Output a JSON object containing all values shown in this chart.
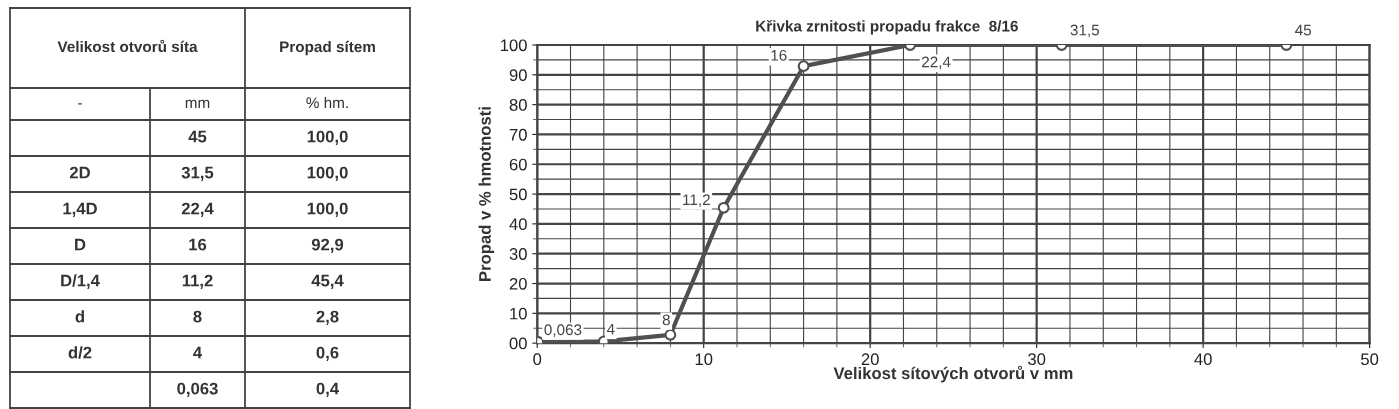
{
  "chart_data": {
    "type": "line",
    "title": "Křivka zrnitosti propadu frakce  8/16",
    "xlabel": "Velikost sítových otvorů v mm",
    "ylabel": "Propad v % hmotnosti",
    "x": [
      0.063,
      4,
      8,
      11.2,
      16,
      22.4,
      31.5,
      45
    ],
    "series": [
      {
        "color": "#505050",
        "values": [
          0.4,
          0.6,
          2.8,
          45.4,
          92.9,
          100.0,
          100.0,
          100.0
        ]
      }
    ],
    "xlim": [
      0,
      50
    ],
    "ylim": [
      0,
      100
    ],
    "xticks": [
      0,
      10,
      20,
      30,
      40,
      50
    ],
    "yticks": [
      {
        "value": 0,
        "label": "00"
      },
      10,
      20,
      30,
      40,
      50,
      60,
      70,
      80,
      90,
      100
    ],
    "grid": true,
    "marker": "circle",
    "line_style": "solid",
    "legend": false,
    "annotations": [
      "Velikost otvorů síta",
      "Propad sítem",
      "-",
      "mm",
      "% hm.",
      "2D",
      "1,4D",
      "D",
      "D/1,4",
      "d",
      "d/2",
      "100,0",
      "100,0",
      "100,0",
      "92,9",
      "45,4",
      "2,8",
      "0,6",
      "0,4",
      {
        "text": "0,063",
        "x": 0.063,
        "y": 0.4
      },
      {
        "text": "4",
        "x": 4,
        "y": 0.6
      },
      {
        "text": "8",
        "x": 8,
        "y": 2.8
      },
      {
        "text": "11,2",
        "x": 11.2,
        "y": 45.4
      },
      {
        "text": "16",
        "x": 16,
        "y": 92.9
      },
      {
        "text": "22,4",
        "x": 22.4,
        "y": 100.0
      },
      {
        "text": "31,5",
        "x": 31.5,
        "y": 100.0
      },
      {
        "text": "45",
        "x": 45,
        "y": 100.0
      }
    ]
  }
}
